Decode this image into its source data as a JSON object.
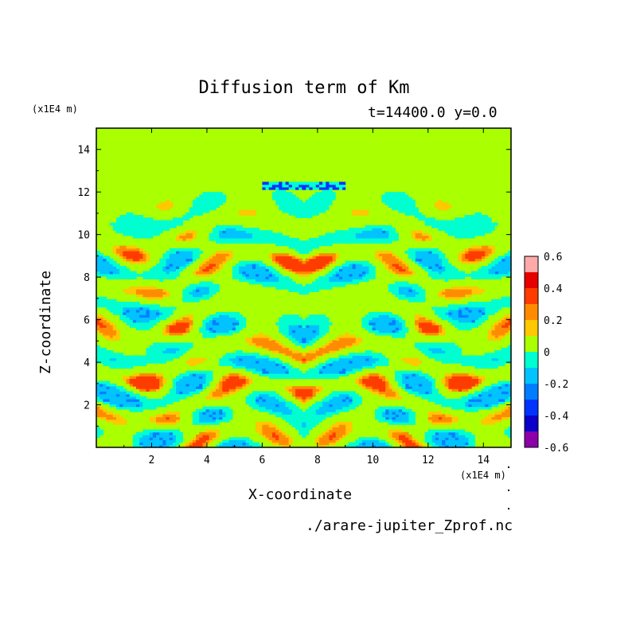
{
  "chart_data": {
    "type": "heatmap",
    "title": "Diffusion term of Km",
    "subtitle": "t=14400.0 y=0.0",
    "xlabel": "X-coordinate",
    "ylabel": "Z-coordinate",
    "x_unit": "(x1E4 m)",
    "y_unit": "(x1E4 m)",
    "xlim": [
      0,
      15
    ],
    "ylim": [
      0,
      15
    ],
    "x_ticks": [
      "2",
      "4",
      "6",
      "8",
      "10",
      "12",
      "14"
    ],
    "y_ticks": [
      "2",
      "4",
      "6",
      "8",
      "10",
      "12",
      "14"
    ],
    "x_tick_values": [
      2,
      4,
      6,
      8,
      10,
      12,
      14
    ],
    "y_tick_values": [
      2,
      4,
      6,
      8,
      10,
      12,
      14
    ],
    "colorbar": {
      "levels": [
        -0.6,
        -0.5,
        -0.4,
        -0.3,
        -0.2,
        -0.1,
        0,
        0.1,
        0.2,
        0.3,
        0.4,
        0.5,
        0.6
      ],
      "labels": [
        "0.6",
        "0.4",
        "0.2",
        "0",
        "-0.2",
        "-0.4",
        "-0.6"
      ],
      "label_values": [
        0.6,
        0.4,
        0.2,
        0,
        -0.2,
        -0.4,
        -0.6
      ],
      "colors": [
        "#8b00a8",
        "#0a00c8",
        "#0033ff",
        "#007dff",
        "#00c3ff",
        "#00ffd0",
        "#aaff00",
        "#ffc800",
        "#ff8c00",
        "#ff3c00",
        "#e60000",
        "#ffaaaa"
      ]
    },
    "background_value_color": "#aaff00",
    "grid": false
  },
  "footer": {
    "source": "./arare-jupiter_Zprof.nc"
  }
}
